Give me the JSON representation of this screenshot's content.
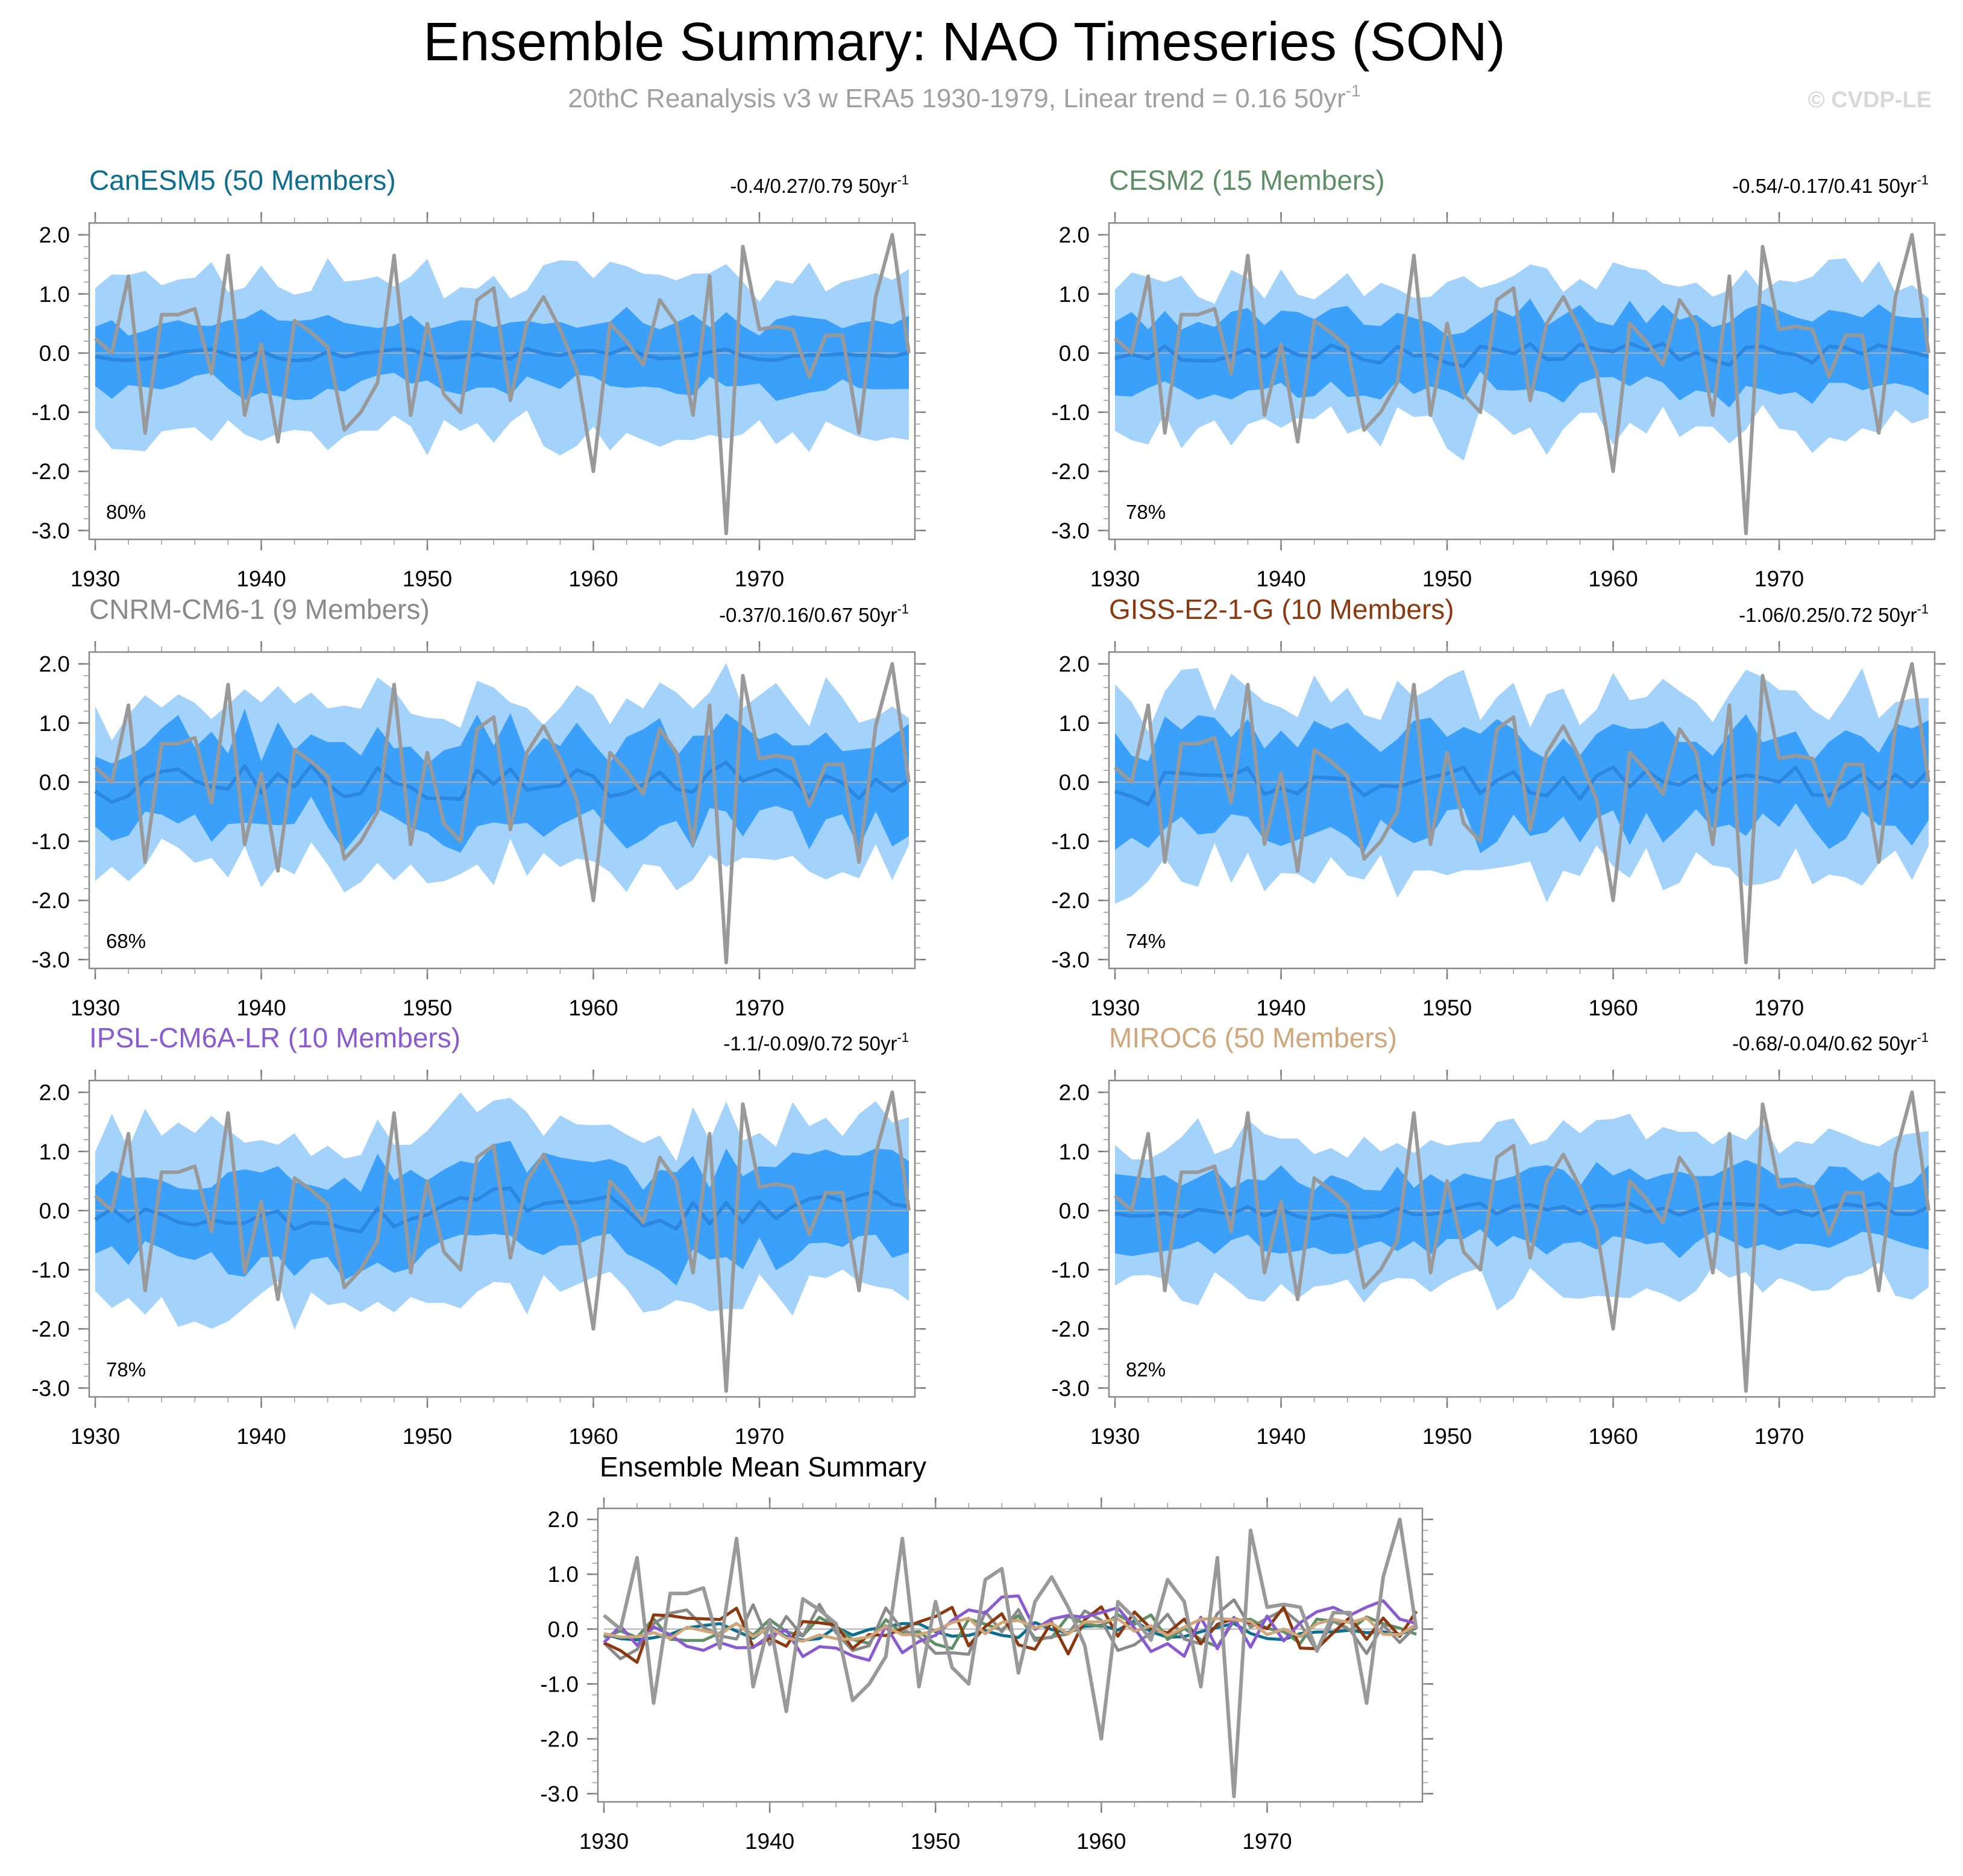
{
  "header": {
    "title": "Ensemble Summary: NAO Timeseries (SON)",
    "subtitle_base": "20thC Reanalysis v3 w ERA5 1930-1979, Linear trend = 0.16 50yr",
    "subtitle_exp": "-1",
    "watermark": "© CVDP-LE"
  },
  "colors": {
    "band_outer": "#a3d2fb",
    "band_inner": "#3ba0fa",
    "ens_mean_line": "#2c87e0",
    "obs_line": "#999999",
    "zero_line": "#b0b0b0"
  },
  "chart_data": [
    {
      "type": "line",
      "name": "CanESM5",
      "title": "CanESM5 (50 Members)",
      "title_color": "#0e6e8f",
      "trend_text": "-0.4/0.27/0.79 50yr",
      "trend_exp": "-1",
      "percent_label": "80%",
      "band_outer_width": 1.3,
      "band_inner_width": 0.55,
      "mean_amp": 0.12,
      "seed": 11,
      "x_start": 1930,
      "x_end": 1979,
      "ylim": [
        -3.0,
        2.0
      ],
      "yticks": [
        "2.0",
        "1.0",
        "0.0",
        "-1.0",
        "-2.0",
        "-3.0"
      ],
      "xticks": [
        "1930",
        "1940",
        "1950",
        "1960",
        "1970"
      ]
    },
    {
      "type": "line",
      "name": "CESM2",
      "title": "CESM2 (15 Members)",
      "title_color": "#5e8f66",
      "trend_text": "-0.54/-0.17/0.41 50yr",
      "trend_exp": "-1",
      "percent_label": "78%",
      "band_outer_width": 1.25,
      "band_inner_width": 0.6,
      "mean_amp": 0.2,
      "seed": 23,
      "x_start": 1930,
      "x_end": 1979,
      "ylim": [
        -3.0,
        2.0
      ],
      "yticks": [
        "2.0",
        "1.0",
        "0.0",
        "-1.0",
        "-2.0",
        "-3.0"
      ],
      "xticks": [
        "1930",
        "1940",
        "1950",
        "1960",
        "1970"
      ]
    },
    {
      "type": "line",
      "name": "CNRM-CM6-1",
      "title": "CNRM-CM6-1 (9 Members)",
      "title_color": "#8a8a8a",
      "trend_text": "-0.37/0.16/0.67 50yr",
      "trend_exp": "-1",
      "percent_label": "68%",
      "band_outer_width": 1.35,
      "band_inner_width": 0.75,
      "mean_amp": 0.35,
      "seed": 37,
      "x_start": 1930,
      "x_end": 1979,
      "ylim": [
        -3.0,
        2.0
      ],
      "yticks": [
        "2.0",
        "1.0",
        "0.0",
        "-1.0",
        "-2.0",
        "-3.0"
      ],
      "xticks": [
        "1930",
        "1940",
        "1950",
        "1960",
        "1970"
      ]
    },
    {
      "type": "line",
      "name": "GISS-E2-1-G",
      "title": "GISS-E2-1-G (10 Members)",
      "title_color": "#8b3a0f",
      "trend_text": "-1.06/0.25/0.72 50yr",
      "trend_exp": "-1",
      "percent_label": "74%",
      "band_outer_width": 1.45,
      "band_inner_width": 0.8,
      "mean_amp": 0.35,
      "seed": 41,
      "x_start": 1930,
      "x_end": 1979,
      "ylim": [
        -3.0,
        2.0
      ],
      "yticks": [
        "2.0",
        "1.0",
        "0.0",
        "-1.0",
        "-2.0",
        "-3.0"
      ],
      "xticks": [
        "1930",
        "1940",
        "1950",
        "1960",
        "1970"
      ]
    },
    {
      "type": "line",
      "name": "IPSL-CM6A-LR",
      "title": "IPSL-CM6A-LR (10 Members)",
      "title_color": "#8a5ad0",
      "trend_text": "-1.1/-0.09/0.72 50yr",
      "trend_exp": "-1",
      "percent_label": "78%",
      "band_outer_width": 1.45,
      "band_inner_width": 0.75,
      "mean_amp": 0.35,
      "seed": 53,
      "x_start": 1930,
      "x_end": 1979,
      "ylim": [
        -3.0,
        2.0
      ],
      "yticks": [
        "2.0",
        "1.0",
        "0.0",
        "-1.0",
        "-2.0",
        "-3.0"
      ],
      "xticks": [
        "1930",
        "1940",
        "1950",
        "1960",
        "1970"
      ]
    },
    {
      "type": "line",
      "name": "MIROC6",
      "title": "MIROC6 (50 Members)",
      "title_color": "#cfa77a",
      "trend_text": "-0.68/-0.04/0.62 50yr",
      "trend_exp": "-1",
      "percent_label": "82%",
      "band_outer_width": 1.25,
      "band_inner_width": 0.6,
      "mean_amp": 0.12,
      "seed": 67,
      "x_start": 1930,
      "x_end": 1979,
      "ylim": [
        -3.0,
        2.0
      ],
      "yticks": [
        "2.0",
        "1.0",
        "0.0",
        "-1.0",
        "-2.0",
        "-3.0"
      ],
      "xticks": [
        "1930",
        "1940",
        "1950",
        "1960",
        "1970"
      ]
    }
  ],
  "observations": {
    "name": "20thC Reanalysis v3 w ERA5",
    "x": [
      1930,
      1931,
      1932,
      1933,
      1934,
      1935,
      1936,
      1937,
      1938,
      1939,
      1940,
      1941,
      1942,
      1943,
      1944,
      1945,
      1946,
      1947,
      1948,
      1949,
      1950,
      1951,
      1952,
      1953,
      1954,
      1955,
      1956,
      1957,
      1958,
      1959,
      1960,
      1961,
      1962,
      1963,
      1964,
      1965,
      1966,
      1967,
      1968,
      1969,
      1970,
      1971,
      1972,
      1973,
      1974,
      1975,
      1976,
      1977,
      1978,
      1979
    ],
    "values": [
      0.25,
      0.0,
      1.3,
      -1.35,
      0.65,
      0.65,
      0.75,
      -0.35,
      1.65,
      -1.05,
      0.15,
      -1.5,
      0.55,
      0.35,
      0.1,
      -1.3,
      -1.0,
      -0.5,
      1.65,
      -1.05,
      0.5,
      -0.7,
      -1.0,
      0.9,
      1.1,
      -0.8,
      0.5,
      0.95,
      0.4,
      -0.3,
      -2.0,
      0.5,
      0.2,
      -0.2,
      0.9,
      0.5,
      -1.05,
      1.3,
      -3.05,
      1.8,
      0.4,
      0.45,
      0.4,
      -0.4,
      0.3,
      0.3,
      -1.35,
      0.95,
      2.0,
      0.0
    ]
  },
  "summary": {
    "title": "Ensemble Mean Summary",
    "x_start": 1930,
    "x_end": 1979,
    "ylim": [
      -3.0,
      2.0
    ],
    "yticks": [
      "2.0",
      "1.0",
      "0.0",
      "-1.0",
      "-2.0",
      "-3.0"
    ],
    "xticks": [
      "1930",
      "1940",
      "1950",
      "1960",
      "1970"
    ],
    "series": [
      {
        "name": "CanESM5",
        "color": "#0e6e8f"
      },
      {
        "name": "CESM2",
        "color": "#5e8f66"
      },
      {
        "name": "CNRM-CM6-1",
        "color": "#8a8a8a"
      },
      {
        "name": "GISS-E2-1-G",
        "color": "#8b3a0f"
      },
      {
        "name": "IPSL-CM6A-LR",
        "color": "#8a5ad0"
      },
      {
        "name": "MIROC6",
        "color": "#cfa77a"
      }
    ]
  }
}
